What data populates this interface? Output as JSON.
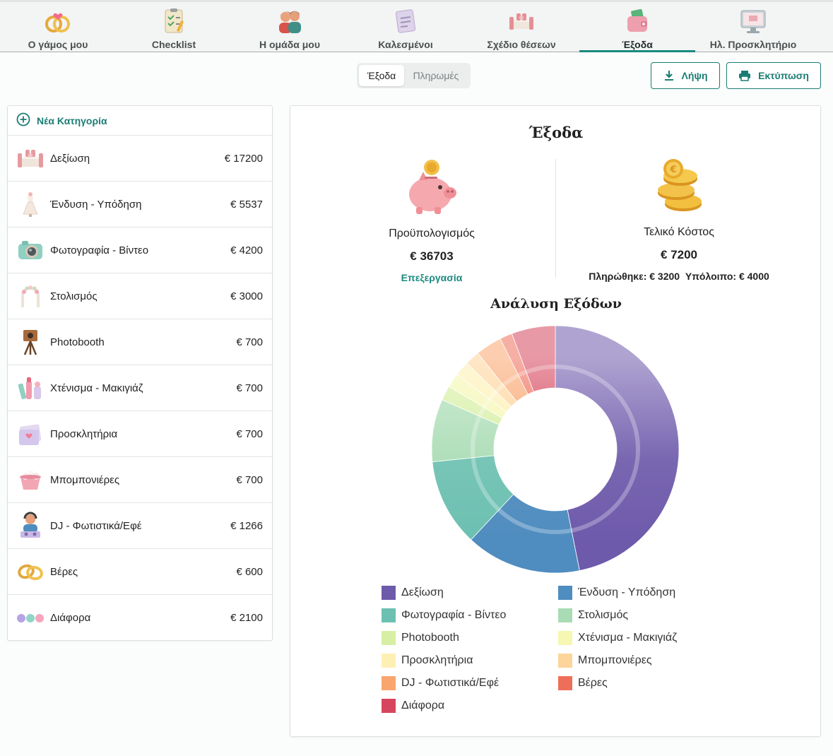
{
  "nav": [
    {
      "label": "Ο γάμος μου",
      "icon": "wedding-rings-icon"
    },
    {
      "label": "Checklist",
      "icon": "checklist-icon"
    },
    {
      "label": "Η ομάδα μου",
      "icon": "team-icon"
    },
    {
      "label": "Καλεσμένοι",
      "icon": "guests-icon"
    },
    {
      "label": "Σχέδιο θέσεων",
      "icon": "seating-icon"
    },
    {
      "label": "Έξοδα",
      "icon": "wallet-icon",
      "active": true
    },
    {
      "label": "Ηλ. Προσκλητήριο",
      "icon": "monitor-icon"
    }
  ],
  "toggle": {
    "selected": "Έξοδα",
    "other": "Πληρωμές"
  },
  "actions": {
    "download": "Λήψη",
    "print": "Εκτύπωση"
  },
  "categories_panel": {
    "new_label": "Νέα Κατηγορία",
    "items": [
      {
        "name": "Δεξίωση",
        "amount": "€ 17200",
        "icon": "reception-table-icon"
      },
      {
        "name": "Ένδυση - Υπόδηση",
        "amount": "€ 5537",
        "icon": "dress-icon"
      },
      {
        "name": "Φωτογραφία - Βίντεο",
        "amount": "€ 4200",
        "icon": "camera-icon"
      },
      {
        "name": "Στολισμός",
        "amount": "€ 3000",
        "icon": "flower-arch-icon"
      },
      {
        "name": "Photobooth",
        "amount": "€ 700",
        "icon": "photobooth-icon"
      },
      {
        "name": "Χτένισμα - Μακιγιάζ",
        "amount": "€ 700",
        "icon": "makeup-icon"
      },
      {
        "name": "Προσκλητήρια",
        "amount": "€ 700",
        "icon": "invitation-icon"
      },
      {
        "name": "Μπομπονιέρες",
        "amount": "€ 700",
        "icon": "favors-icon"
      },
      {
        "name": "DJ - Φωτιστικά/Εφέ",
        "amount": "€ 1266",
        "icon": "dj-icon"
      },
      {
        "name": "Βέρες",
        "amount": "€ 600",
        "icon": "rings-icon"
      },
      {
        "name": "Διάφορα",
        "amount": "€ 2100",
        "icon": "misc-dots-icon"
      }
    ]
  },
  "summary": {
    "title": "Έξοδα",
    "budget": {
      "label": "Προϋπολογισμός",
      "value": "€ 36703",
      "edit": "Επεξεργασία",
      "icon": "piggy-bank-icon"
    },
    "final": {
      "label": "Τελικό Κόστος",
      "value": "€ 7200",
      "paid": "Πληρώθηκε: € 3200",
      "remaining": "Υπόλοιπο: € 4000",
      "icon": "coins-icon"
    }
  },
  "chart_data": {
    "type": "pie",
    "title": "Ανάλυση Εξόδων",
    "categories": [
      "Δεξίωση",
      "Ένδυση - Υπόδηση",
      "Φωτογραφία - Βίντεο",
      "Στολισμός",
      "Photobooth",
      "Χτένισμα - Μακιγιάζ",
      "Προσκλητήρια",
      "Μπομπονιέρες",
      "DJ - Φωτιστικά/Εφέ",
      "Βέρες",
      "Διάφορα"
    ],
    "values": [
      17200,
      5537,
      4200,
      3000,
      700,
      700,
      700,
      700,
      1266,
      600,
      2100
    ],
    "colors": [
      "#6e5aab",
      "#4f8cbf",
      "#6cc0b1",
      "#a9dcb4",
      "#d7efa4",
      "#f5f7b3",
      "#fdf0b4",
      "#fdd49a",
      "#f9a56e",
      "#ef6e5a",
      "#d6465e"
    ],
    "legend": "bottom"
  }
}
